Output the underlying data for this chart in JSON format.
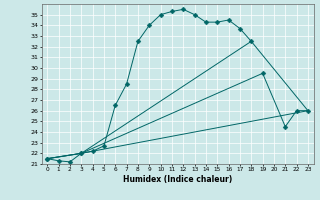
{
  "xlabel": "Humidex (Indice chaleur)",
  "bg_color": "#cce8e8",
  "grid_color": "#aacccc",
  "line_color": "#006666",
  "xlim": [
    -0.5,
    23.5
  ],
  "ylim": [
    21,
    36
  ],
  "xticks": [
    0,
    1,
    2,
    3,
    4,
    5,
    6,
    7,
    8,
    9,
    10,
    11,
    12,
    13,
    14,
    15,
    16,
    17,
    18,
    19,
    20,
    21,
    22,
    23
  ],
  "yticks": [
    21,
    22,
    23,
    24,
    25,
    26,
    27,
    28,
    29,
    30,
    31,
    32,
    33,
    34,
    35
  ],
  "lines": [
    {
      "x": [
        0,
        1,
        2,
        3,
        4,
        5,
        6,
        7,
        8,
        9,
        10,
        11,
        12,
        13,
        14,
        15,
        16,
        17,
        18
      ],
      "y": [
        21.5,
        21.3,
        21.2,
        22.0,
        22.2,
        22.7,
        26.5,
        28.5,
        32.5,
        34.0,
        35.0,
        35.3,
        35.5,
        35.0,
        34.3,
        34.3,
        34.5,
        33.7,
        32.5
      ],
      "marker": true,
      "markersize": 2.5
    },
    {
      "x": [
        0,
        3,
        18,
        23
      ],
      "y": [
        21.5,
        22.0,
        32.5,
        26.0
      ],
      "marker": false,
      "markersize": 0
    },
    {
      "x": [
        0,
        3,
        19,
        21,
        22,
        23
      ],
      "y": [
        21.5,
        22.0,
        29.5,
        24.5,
        26.0,
        26.0
      ],
      "marker": true,
      "markersize": 2.5
    },
    {
      "x": [
        0,
        3,
        23
      ],
      "y": [
        21.5,
        22.0,
        26.0
      ],
      "marker": false,
      "markersize": 0
    }
  ]
}
